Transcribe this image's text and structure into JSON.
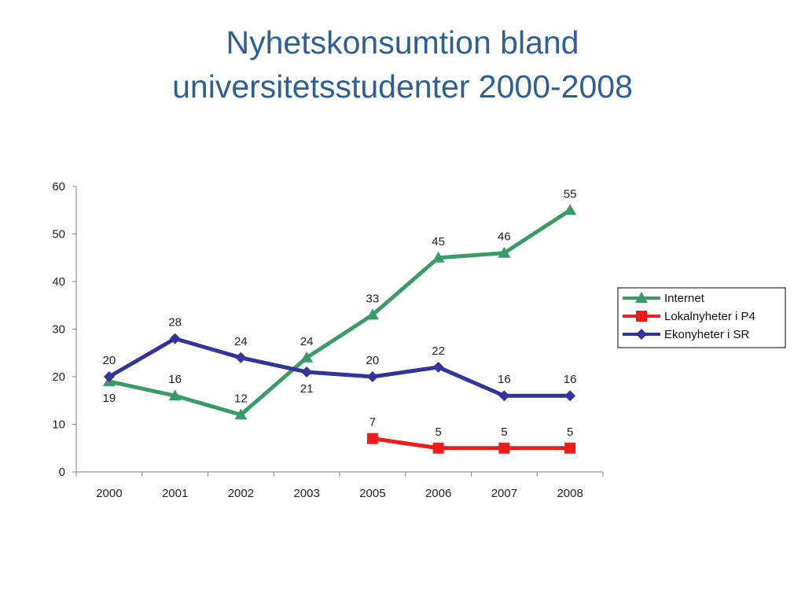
{
  "slide": {
    "title_line1": "Nyhetskonsumtion bland",
    "title_line2": "universitetsstudenter 2000-2008"
  },
  "chart_data": {
    "type": "line",
    "categories": [
      "2000",
      "2001",
      "2002",
      "2003",
      "2005",
      "2006",
      "2007",
      "2008"
    ],
    "ylim": [
      0,
      60
    ],
    "yticks": [
      0,
      10,
      20,
      30,
      40,
      50,
      60
    ],
    "grid": false,
    "legend_position": "right",
    "title": "",
    "xlabel": "",
    "ylabel": "",
    "series": [
      {
        "name": "Internet",
        "color": "#3a9a68",
        "marker": "triangle",
        "values": [
          19,
          16,
          12,
          24,
          33,
          45,
          46,
          55
        ]
      },
      {
        "name": "Lokalnyheter i P4",
        "color": "#ee1c1c",
        "marker": "square",
        "values": [
          null,
          null,
          null,
          null,
          7,
          5,
          5,
          5
        ]
      },
      {
        "name": "Ekonyheter i SR",
        "color": "#33339a",
        "marker": "diamond",
        "values": [
          20,
          28,
          24,
          21,
          20,
          22,
          16,
          16
        ]
      }
    ]
  }
}
